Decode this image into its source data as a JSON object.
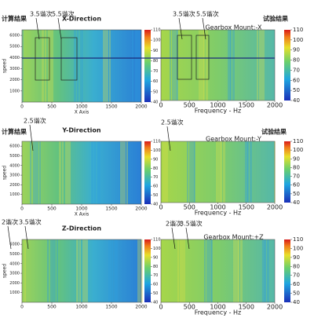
{
  "chart_data": [
    {
      "type": "heatmap",
      "title": "X-Direction",
      "label": "计算结果",
      "annotations": [
        "3.5谐次",
        "5.5谐次"
      ],
      "ylabel": "speed",
      "xlabel": "X Axis",
      "xlim": [
        0,
        2000
      ],
      "xticks": [
        0,
        500,
        1000,
        1500,
        2000
      ],
      "ylim": [
        0,
        6500
      ],
      "yticks": [
        1000,
        2000,
        3000,
        4000,
        5000,
        6000
      ],
      "clim": [
        40,
        110
      ],
      "cticks": [
        40,
        50,
        60,
        70,
        80,
        90,
        100,
        110
      ]
    },
    {
      "type": "heatmap",
      "title": "Gearbox Mount:-X",
      "label": "试验结果",
      "annotations": [
        "3.5谐次",
        "5.5谐次"
      ],
      "xlabel": "Frequency - Hz",
      "xlim": [
        0,
        2000
      ],
      "xticks": [
        0,
        500,
        1000,
        1500,
        2000
      ],
      "clim": [
        40,
        110
      ],
      "cticks": [
        40,
        50,
        60,
        70,
        80,
        90,
        100,
        110
      ]
    },
    {
      "type": "heatmap",
      "title": "Y-Direction",
      "label": "计算结果",
      "annotations": [
        "2.5谐次"
      ],
      "ylabel": "speed",
      "xlabel": "X Axis",
      "xlim": [
        0,
        2000
      ],
      "xticks": [
        0,
        500,
        1000,
        1500,
        2000
      ],
      "ylim": [
        0,
        6500
      ],
      "yticks": [
        1000,
        2000,
        3000,
        4000,
        5000,
        6000
      ],
      "clim": [
        40,
        110
      ],
      "cticks": [
        40,
        50,
        60,
        70,
        80,
        90,
        100,
        110
      ]
    },
    {
      "type": "heatmap",
      "title": "Gearbox Mount:-Y",
      "label": "试验结果",
      "annotations": [
        "2.5谐次"
      ],
      "xlabel": "Frequency - Hz",
      "xlim": [
        0,
        2000
      ],
      "xticks": [
        0,
        500,
        1000,
        1500,
        2000
      ],
      "clim": [
        40,
        110
      ],
      "cticks": [
        40,
        50,
        60,
        70,
        80,
        90,
        100,
        110
      ]
    },
    {
      "type": "heatmap",
      "title": "Z-Direction",
      "annotations": [
        "2谐次",
        "3.5谐次"
      ],
      "ylabel": "speed",
      "xlim": [
        0,
        2000
      ],
      "xticks": [
        0,
        500,
        1000,
        1500,
        2000
      ],
      "ylim": [
        0,
        6500
      ],
      "yticks": [
        1000,
        2000,
        3000,
        4000,
        5000,
        6000
      ],
      "clim": [
        40,
        110
      ],
      "cticks": [
        40,
        50,
        60,
        70,
        80,
        90,
        100,
        110
      ]
    },
    {
      "type": "heatmap",
      "title": "Gearbox Mount:+Z",
      "annotations": [
        "2谐次",
        "3.5谐次"
      ],
      "xlabel": "Frequency - Hz",
      "xlim": [
        0,
        2000
      ],
      "xticks": [
        0,
        500,
        1000,
        1500,
        2000
      ],
      "clim": [
        40,
        110
      ],
      "cticks": [
        40,
        50,
        60,
        70,
        80,
        90,
        100,
        110
      ]
    }
  ]
}
